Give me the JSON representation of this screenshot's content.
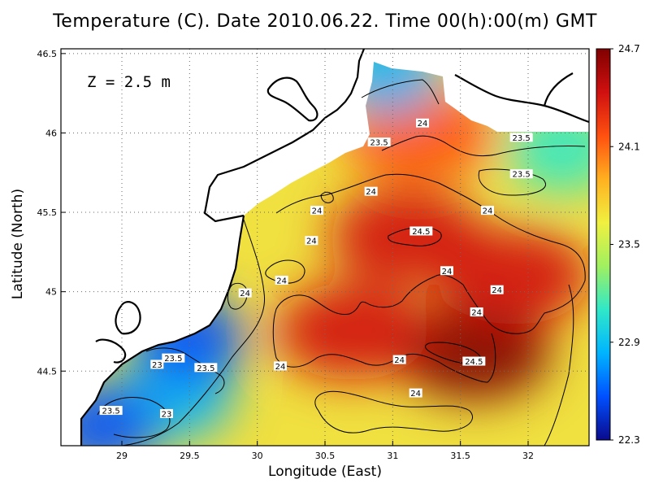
{
  "chart_data": {
    "type": "heatmap",
    "title": "Temperature (C). Date 2010.06.22. Time 00(h):00(m) GMT",
    "xlabel": "Longitude (East)",
    "ylabel": "Latitude (North)",
    "depth_label": "Z = 2.5 m",
    "xlim": [
      28.55,
      32.45
    ],
    "ylim": [
      44.03,
      46.53
    ],
    "x_ticks": [
      29,
      29.5,
      30,
      30.5,
      31,
      31.5,
      32
    ],
    "x_tick_labels": [
      "29",
      "29.5",
      "30",
      "30.5",
      "31",
      "31.5",
      "32"
    ],
    "y_ticks": [
      44.5,
      45,
      45.5,
      46,
      46.5
    ],
    "y_tick_labels": [
      "44.5",
      "45",
      "45.5",
      "46",
      "46.5"
    ],
    "grid": true,
    "colorbar": {
      "min": 22.3,
      "max": 24.7,
      "ticks": [
        22.3,
        22.9,
        23.5,
        24.1,
        24.7
      ],
      "tick_labels": [
        "22.3",
        "22.9",
        "23.5",
        "24.1",
        "24.7"
      ],
      "colors": [
        "#0a0a8c",
        "#0050ff",
        "#00b4ff",
        "#30e8c8",
        "#a0f060",
        "#f0f040",
        "#ffb020",
        "#ff5010",
        "#d01010",
        "#800000"
      ]
    },
    "contour_labels": [
      {
        "value": "24",
        "lon": 31.22,
        "lat": 46.06
      },
      {
        "value": "23.5",
        "lon": 30.9,
        "lat": 45.94
      },
      {
        "value": "23.5",
        "lon": 31.95,
        "lat": 45.97
      },
      {
        "value": "23.5",
        "lon": 31.95,
        "lat": 45.74
      },
      {
        "value": "24",
        "lon": 30.84,
        "lat": 45.63
      },
      {
        "value": "24",
        "lon": 30.44,
        "lat": 45.51
      },
      {
        "value": "24",
        "lon": 31.7,
        "lat": 45.51
      },
      {
        "value": "24.5",
        "lon": 31.21,
        "lat": 45.38
      },
      {
        "value": "24",
        "lon": 30.4,
        "lat": 45.32
      },
      {
        "value": "24",
        "lon": 31.4,
        "lat": 45.13
      },
      {
        "value": "24",
        "lon": 30.18,
        "lat": 45.07
      },
      {
        "value": "24",
        "lon": 31.77,
        "lat": 45.01
      },
      {
        "value": "24",
        "lon": 29.91,
        "lat": 44.99
      },
      {
        "value": "24",
        "lon": 31.62,
        "lat": 44.87
      },
      {
        "value": "24.5",
        "lon": 31.6,
        "lat": 44.56
      },
      {
        "value": "24",
        "lon": 31.05,
        "lat": 44.57
      },
      {
        "value": "24",
        "lon": 30.17,
        "lat": 44.53
      },
      {
        "value": "23.5",
        "lon": 29.38,
        "lat": 44.58
      },
      {
        "value": "23.5",
        "lon": 29.62,
        "lat": 44.52
      },
      {
        "value": "23",
        "lon": 29.26,
        "lat": 44.54
      },
      {
        "value": "24",
        "lon": 31.17,
        "lat": 44.36
      },
      {
        "value": "23.5",
        "lon": 28.92,
        "lat": 44.25
      },
      {
        "value": "23",
        "lon": 29.33,
        "lat": 44.23
      }
    ],
    "temperature_hotspots": [
      {
        "lon": 31.1,
        "lat": 45.35,
        "value": 24.55
      },
      {
        "lon": 31.6,
        "lat": 44.62,
        "value": 24.6
      },
      {
        "lon": 30.7,
        "lat": 44.75,
        "value": 24.4
      },
      {
        "lon": 31.9,
        "lat": 45.1,
        "value": 24.35
      },
      {
        "lon": 31.2,
        "lat": 46.0,
        "value": 24.15
      },
      {
        "lon": 29.4,
        "lat": 44.35,
        "value": 22.8
      },
      {
        "lon": 28.85,
        "lat": 44.15,
        "value": 22.6
      },
      {
        "lon": 30.95,
        "lat": 46.4,
        "value": 22.9
      },
      {
        "lon": 29.5,
        "lat": 44.7,
        "value": 22.6
      },
      {
        "lon": 32.25,
        "lat": 45.9,
        "value": 23.1
      }
    ]
  }
}
